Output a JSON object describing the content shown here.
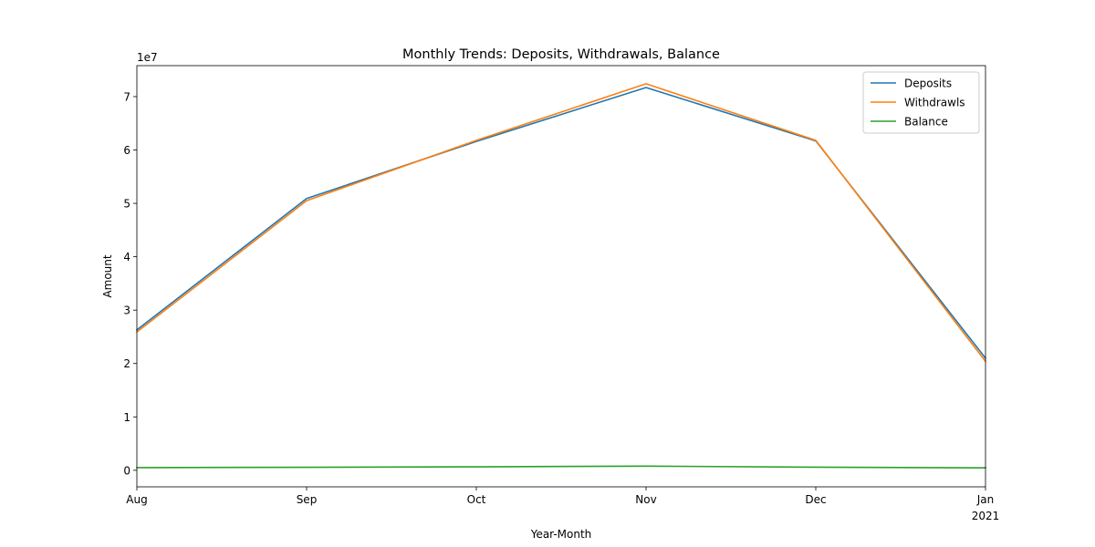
{
  "chart_data": {
    "type": "line",
    "title": "Monthly Trends: Deposits, Withdrawals, Balance",
    "xlabel": "Year-Month",
    "ylabel": "Amount",
    "y_offset_label": "1e7",
    "y_scale": 10000000,
    "x_tick_labels": [
      {
        "line1": "Aug",
        "line2": ""
      },
      {
        "line1": "Sep",
        "line2": ""
      },
      {
        "line1": "Oct",
        "line2": ""
      },
      {
        "line1": "Nov",
        "line2": ""
      },
      {
        "line1": "Dec",
        "line2": ""
      },
      {
        "line1": "Jan",
        "line2": "2021"
      }
    ],
    "y_ticks": [
      0,
      1,
      2,
      3,
      4,
      5,
      6,
      7
    ],
    "ylim": [
      -3100000,
      75800000
    ],
    "grid": false,
    "legend_placement": "top-right",
    "series": [
      {
        "name": "Deposits",
        "color": "#1f77b4",
        "values": [
          26300000,
          50900000,
          61600000,
          71700000,
          61700000,
          21000000
        ]
      },
      {
        "name": "Withdrawls",
        "color": "#ff7f0e",
        "values": [
          25900000,
          50500000,
          61800000,
          72400000,
          61800000,
          20400000
        ]
      },
      {
        "name": "Balance",
        "color": "#2ca02c",
        "values": [
          500000,
          560000,
          650000,
          780000,
          580000,
          450000
        ]
      }
    ]
  }
}
